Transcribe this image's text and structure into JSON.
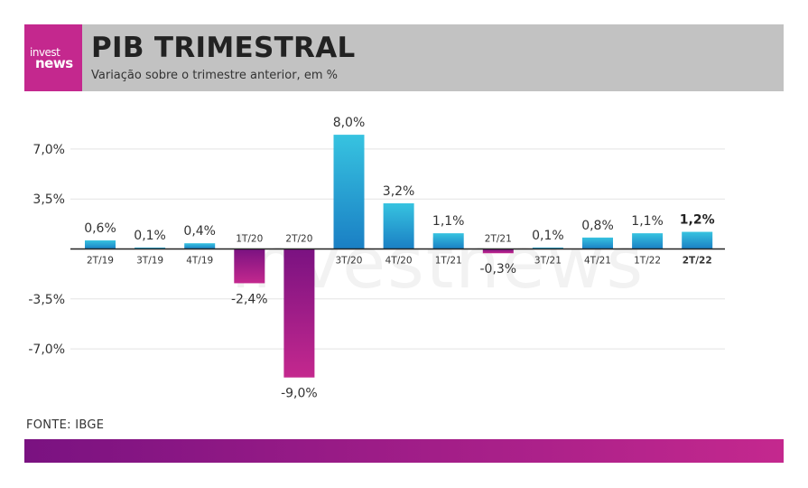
{
  "header": {
    "logo_top": "invest",
    "logo_bottom": "news",
    "title": "PIB TRIMESTRAL",
    "subtitle": "Variação sobre o trimestre anterior, em %"
  },
  "source": "FONTE: IBGE",
  "colors": {
    "positive_top": "#37c3e0",
    "positive_bottom": "#1a7fc4",
    "negative_top": "#7a1281",
    "negative_bottom": "#c4288e",
    "header_bg": "#c2c2c2",
    "logo_bg": "#c4288e"
  },
  "chart_data": {
    "type": "bar",
    "title": "PIB TRIMESTRAL",
    "subtitle": "Variação sobre o trimestre anterior, em %",
    "categories": [
      "2T/19",
      "3T/19",
      "4T/19",
      "1T/20",
      "2T/20",
      "3T/20",
      "4T/20",
      "1T/21",
      "2T/21",
      "3T/21",
      "4T/21",
      "1T/22",
      "2T/22"
    ],
    "values": [
      0.6,
      0.1,
      0.4,
      -2.4,
      -9.0,
      8.0,
      3.2,
      1.1,
      -0.3,
      0.1,
      0.8,
      1.1,
      1.2
    ],
    "value_labels": [
      "0,6%",
      "0,1%",
      "0,4%",
      "-2,4%",
      "-9,0%",
      "8,0%",
      "3,2%",
      "1,1%",
      "-0,3%",
      "0,1%",
      "0,8%",
      "1,1%",
      "1,2%"
    ],
    "highlight": "2T/22",
    "yticks": [
      7.0,
      3.5,
      -3.5,
      -7.0
    ],
    "ytick_labels": [
      "7,0%",
      "3,5%",
      "-3,5%",
      "-7,0%"
    ],
    "ylim": [
      -9.5,
      8.5
    ],
    "grid": true,
    "watermark": "investnews"
  }
}
